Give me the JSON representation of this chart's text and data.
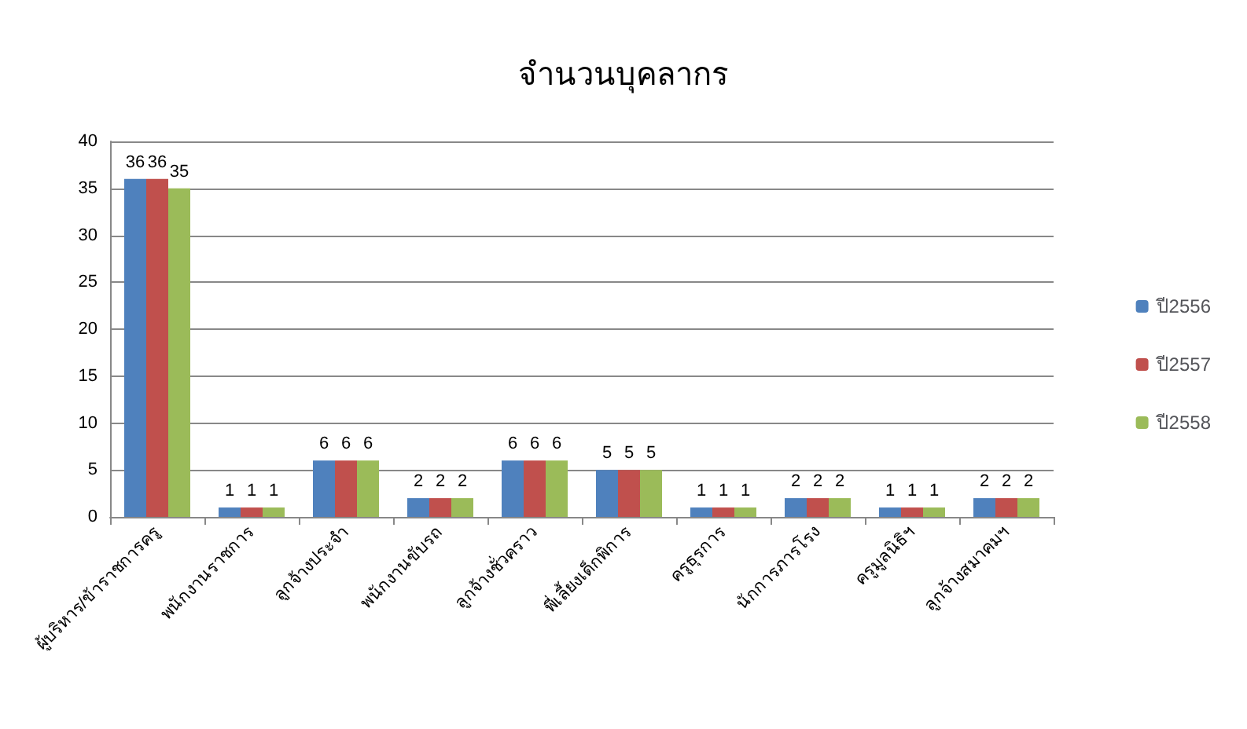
{
  "chart_data": {
    "type": "bar",
    "title": "จำนวนบุคลากร",
    "categories": [
      "ผู้บริหาร/ข้าราชการครู",
      "พนักงานราชการ",
      "ลูกจ้างประจำ",
      "พนักงานขับรถ",
      "ลูกจ้างชั่วคราว",
      "พี่เลี้ยงเด็กพิการ",
      "ครูธุรการ",
      "นักการภารโรง",
      "ครูมูลนิธิฯ",
      "ลูกจ้างสมาคมฯ"
    ],
    "series": [
      {
        "name": "ปี2556",
        "color": "#4f81bd",
        "values": [
          36,
          1,
          6,
          2,
          6,
          5,
          1,
          2,
          1,
          2
        ]
      },
      {
        "name": "ปี2557",
        "color": "#c0504d",
        "values": [
          36,
          1,
          6,
          2,
          6,
          5,
          1,
          2,
          1,
          2
        ]
      },
      {
        "name": "ปี2558",
        "color": "#9bbb59",
        "values": [
          35,
          1,
          6,
          2,
          6,
          5,
          1,
          2,
          1,
          2
        ]
      }
    ],
    "ylim": [
      0,
      40
    ],
    "yticks": [
      0,
      5,
      10,
      15,
      20,
      25,
      30,
      35,
      40
    ],
    "grid": "y",
    "legend": "right",
    "data_labels": true
  }
}
